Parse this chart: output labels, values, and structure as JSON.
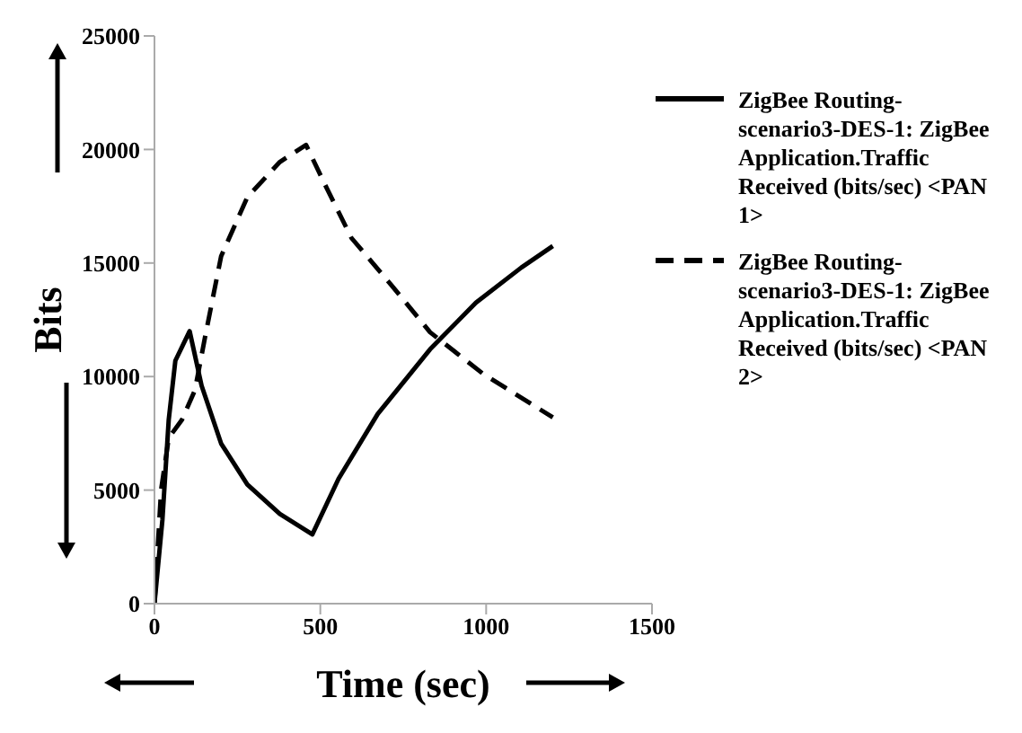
{
  "chart_data": {
    "type": "line",
    "xlabel": "Time (sec)",
    "ylabel": "Bits",
    "xlim": [
      0,
      1500
    ],
    "xticks": [
      0,
      500,
      1000,
      1500
    ],
    "ylim": [
      0,
      25000
    ],
    "yticks": [
      0,
      5000,
      10000,
      15000,
      20000,
      25000
    ],
    "grid": false,
    "legend": "right",
    "marker": "none",
    "series": [
      {
        "name": "ZigBee Routing-scenario3-DES-1: ZigBee Application.Traffic Received (bits/sec) <PAN 1>",
        "color": "#000000",
        "line_style": "solid",
        "x": [
          0,
          24,
          43,
          63,
          106,
          142,
          201,
          280,
          378,
          476,
          555,
          673,
          831,
          969,
          1106,
          1201
        ],
        "values": [
          0,
          3700,
          8100,
          10700,
          12000,
          9600,
          7050,
          5250,
          3950,
          3050,
          5500,
          8350,
          11200,
          13250,
          14800,
          15750
        ]
      },
      {
        "name": "ZigBee Routing-scenario3-DES-1: ZigBee Application.Traffic Received (bits/sec) <PAN 2>",
        "color": "#000000",
        "line_style": "dashed",
        "x": [
          0,
          20,
          43,
          83,
          122,
          152,
          201,
          280,
          378,
          457,
          516,
          594,
          713,
          831,
          988,
          1201
        ],
        "values": [
          0,
          5000,
          7300,
          8100,
          9400,
          11700,
          15300,
          17900,
          19450,
          20200,
          18400,
          16100,
          14050,
          11950,
          10150,
          8200
        ]
      }
    ]
  }
}
